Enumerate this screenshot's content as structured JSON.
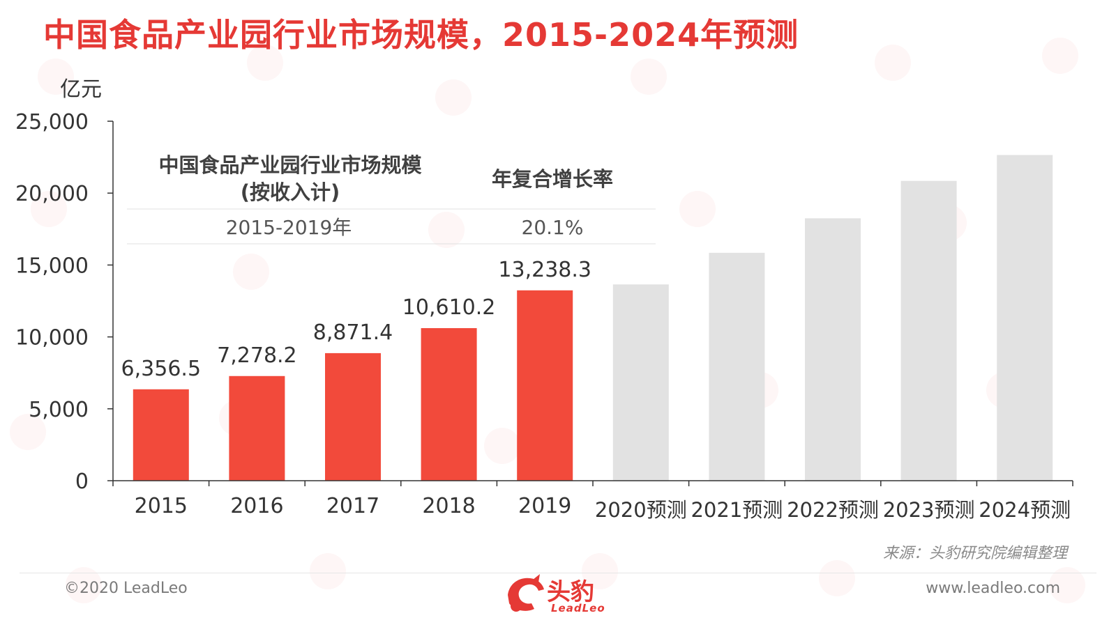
{
  "title": "中国食品产业园行业市场规模，2015-2024年预测",
  "source": "来源：头豹研究院编辑整理",
  "footer": {
    "copyright": "©2020 LeadLeo",
    "url": "www.leadleo.com"
  },
  "logo": {
    "text": "头豹",
    "sub": "LeadLeo"
  },
  "colors": {
    "actual": "#f24a3b",
    "forecast": "#e2e2e2",
    "title": "#e53935"
  },
  "chart_data": {
    "type": "bar",
    "y_unit": "亿元",
    "ylim": [
      0,
      25000
    ],
    "yticks": [
      "0",
      "5,000",
      "10,000",
      "15,000",
      "20,000",
      "25,000"
    ],
    "categories": [
      "2015",
      "2016",
      "2017",
      "2018",
      "2019",
      "2020预测",
      "2021预测",
      "2022预测",
      "2023预测",
      "2024预测"
    ],
    "values": [
      6356.5,
      7278.2,
      8871.4,
      10610.2,
      13238.3,
      13650,
      15850,
      18250,
      20850,
      22650
    ],
    "value_labels": [
      "6,356.5",
      "7,278.2",
      "8,871.4",
      "10,610.2",
      "13,238.3",
      "",
      "",
      "",
      "",
      ""
    ],
    "forecast": [
      false,
      false,
      false,
      false,
      false,
      true,
      true,
      true,
      true,
      true
    ],
    "grid": false,
    "cagr_table": {
      "col1_header_line1": "中国食品产业园行业市场规模",
      "col1_header_line2": "(按收入计)",
      "col2_header": "年复合增长率",
      "row_period": "2015-2019年",
      "row_rate": "20.1%"
    }
  }
}
